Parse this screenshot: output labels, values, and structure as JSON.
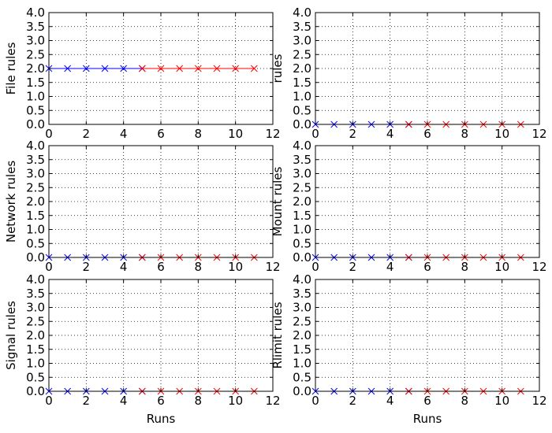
{
  "chart_data": [
    {
      "type": "line",
      "ylabel": "File rules",
      "xlabel": "",
      "xlim": [
        0,
        12
      ],
      "ylim": [
        0,
        4
      ],
      "xticks": [
        0,
        2,
        4,
        6,
        8,
        10,
        12
      ],
      "yticks": [
        0.0,
        0.5,
        1.0,
        1.5,
        2.0,
        2.5,
        3.0,
        3.5,
        4.0
      ],
      "grid": true,
      "series": [
        {
          "color": "#0000ff",
          "marker": "x",
          "x": [
            0,
            1,
            2,
            3,
            4,
            5
          ],
          "y": [
            2,
            2,
            2,
            2,
            2,
            2
          ]
        },
        {
          "color": "#ff0000",
          "marker": "x",
          "x": [
            5,
            6,
            7,
            8,
            9,
            10,
            11
          ],
          "y": [
            2,
            2,
            2,
            2,
            2,
            2,
            2
          ]
        }
      ]
    },
    {
      "type": "line",
      "ylabel": "rules",
      "xlabel": "",
      "xlim": [
        0,
        12
      ],
      "ylim": [
        0,
        4
      ],
      "xticks": [
        0,
        2,
        4,
        6,
        8,
        10,
        12
      ],
      "yticks": [
        0.0,
        0.5,
        1.0,
        1.5,
        2.0,
        2.5,
        3.0,
        3.5,
        4.0
      ],
      "grid": true,
      "series": [
        {
          "color": "#0000ff",
          "marker": "x",
          "x": [
            0,
            1,
            2,
            3,
            4,
            5
          ],
          "y": [
            0,
            0,
            0,
            0,
            0,
            0
          ]
        },
        {
          "color": "#ff0000",
          "marker": "x",
          "x": [
            5,
            6,
            7,
            8,
            9,
            10,
            11
          ],
          "y": [
            0,
            0,
            0,
            0,
            0,
            0,
            0
          ]
        }
      ]
    },
    {
      "type": "line",
      "ylabel": "Network rules",
      "xlabel": "",
      "xlim": [
        0,
        12
      ],
      "ylim": [
        0,
        4
      ],
      "xticks": [
        0,
        2,
        4,
        6,
        8,
        10,
        12
      ],
      "yticks": [
        0.0,
        0.5,
        1.0,
        1.5,
        2.0,
        2.5,
        3.0,
        3.5,
        4.0
      ],
      "grid": true,
      "series": [
        {
          "color": "#0000ff",
          "marker": "x",
          "x": [
            0,
            1,
            2,
            3,
            4,
            5
          ],
          "y": [
            0,
            0,
            0,
            0,
            0,
            0
          ]
        },
        {
          "color": "#ff0000",
          "marker": "x",
          "x": [
            5,
            6,
            7,
            8,
            9,
            10,
            11
          ],
          "y": [
            0,
            0,
            0,
            0,
            0,
            0,
            0
          ]
        }
      ]
    },
    {
      "type": "line",
      "ylabel": "Mount rules",
      "xlabel": "",
      "xlim": [
        0,
        12
      ],
      "ylim": [
        0,
        4
      ],
      "xticks": [
        0,
        2,
        4,
        6,
        8,
        10,
        12
      ],
      "yticks": [
        0.0,
        0.5,
        1.0,
        1.5,
        2.0,
        2.5,
        3.0,
        3.5,
        4.0
      ],
      "grid": true,
      "series": [
        {
          "color": "#0000ff",
          "marker": "x",
          "x": [
            0,
            1,
            2,
            3,
            4,
            5
          ],
          "y": [
            0,
            0,
            0,
            0,
            0,
            0
          ]
        },
        {
          "color": "#ff0000",
          "marker": "x",
          "x": [
            5,
            6,
            7,
            8,
            9,
            10,
            11
          ],
          "y": [
            0,
            0,
            0,
            0,
            0,
            0,
            0
          ]
        }
      ]
    },
    {
      "type": "line",
      "ylabel": "Signal rules",
      "xlabel": "Runs",
      "xlim": [
        0,
        12
      ],
      "ylim": [
        0,
        4
      ],
      "xticks": [
        0,
        2,
        4,
        6,
        8,
        10,
        12
      ],
      "yticks": [
        0.0,
        0.5,
        1.0,
        1.5,
        2.0,
        2.5,
        3.0,
        3.5,
        4.0
      ],
      "grid": true,
      "series": [
        {
          "color": "#0000ff",
          "marker": "x",
          "x": [
            0,
            1,
            2,
            3,
            4,
            5
          ],
          "y": [
            0,
            0,
            0,
            0,
            0,
            0
          ]
        },
        {
          "color": "#ff0000",
          "marker": "x",
          "x": [
            5,
            6,
            7,
            8,
            9,
            10,
            11
          ],
          "y": [
            0,
            0,
            0,
            0,
            0,
            0,
            0
          ]
        }
      ]
    },
    {
      "type": "line",
      "ylabel": "Rlimit rules",
      "xlabel": "Runs",
      "xlim": [
        0,
        12
      ],
      "ylim": [
        0,
        4
      ],
      "xticks": [
        0,
        2,
        4,
        6,
        8,
        10,
        12
      ],
      "yticks": [
        0.0,
        0.5,
        1.0,
        1.5,
        2.0,
        2.5,
        3.0,
        3.5,
        4.0
      ],
      "grid": true,
      "series": [
        {
          "color": "#0000ff",
          "marker": "x",
          "x": [
            0,
            1,
            2,
            3,
            4,
            5
          ],
          "y": [
            0,
            0,
            0,
            0,
            0,
            0
          ]
        },
        {
          "color": "#ff0000",
          "marker": "x",
          "x": [
            5,
            6,
            7,
            8,
            9,
            10,
            11
          ],
          "y": [
            0,
            0,
            0,
            0,
            0,
            0,
            0
          ]
        }
      ]
    }
  ]
}
